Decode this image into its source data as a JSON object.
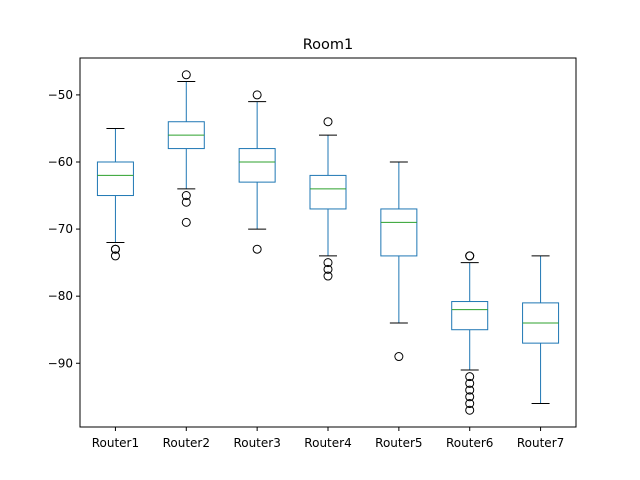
{
  "chart_data": {
    "type": "boxplot",
    "title": "Room1",
    "xlabel": "",
    "ylabel": "",
    "ylim": [
      -99.5,
      -44.5
    ],
    "yticks": [
      -90,
      -80,
      -70,
      -60,
      -50
    ],
    "ytick_labels": [
      "−90",
      "−80",
      "−70",
      "−60",
      "−50"
    ],
    "grid": false,
    "colors": {
      "box": "#1f77b4",
      "median": "#2ca02c",
      "axis": "#000000"
    },
    "categories": [
      "Router1",
      "Router2",
      "Router3",
      "Router4",
      "Router5",
      "Router6",
      "Router7"
    ],
    "boxes": [
      {
        "name": "Router1",
        "whisker_low": -72,
        "q1": -65,
        "median": -62,
        "q3": -60,
        "whisker_high": -55,
        "outliers": [
          -73,
          -73,
          -74
        ]
      },
      {
        "name": "Router2",
        "whisker_low": -64,
        "q1": -58,
        "median": -56,
        "q3": -54,
        "whisker_high": -48,
        "outliers": [
          -47,
          -65,
          -66,
          -69
        ]
      },
      {
        "name": "Router3",
        "whisker_low": -70,
        "q1": -63,
        "median": -60,
        "q3": -58,
        "whisker_high": -51,
        "outliers": [
          -50,
          -73
        ]
      },
      {
        "name": "Router4",
        "whisker_low": -74,
        "q1": -67,
        "median": -64,
        "q3": -62,
        "whisker_high": -56,
        "outliers": [
          -54,
          -75,
          -76,
          -77
        ]
      },
      {
        "name": "Router5",
        "whisker_low": -84,
        "q1": -74,
        "median": -69,
        "q3": -67,
        "whisker_high": -60,
        "outliers": [
          -89
        ]
      },
      {
        "name": "Router6",
        "whisker_low": -91,
        "q1": -85,
        "median": -82,
        "q3": -80.8,
        "whisker_high": -75,
        "outliers": [
          -74,
          -74,
          -92,
          -93,
          -94,
          -95,
          -96,
          -97
        ]
      },
      {
        "name": "Router7",
        "whisker_low": -96,
        "q1": -87,
        "median": -84,
        "q3": -81,
        "whisker_high": -74,
        "outliers": []
      }
    ]
  }
}
